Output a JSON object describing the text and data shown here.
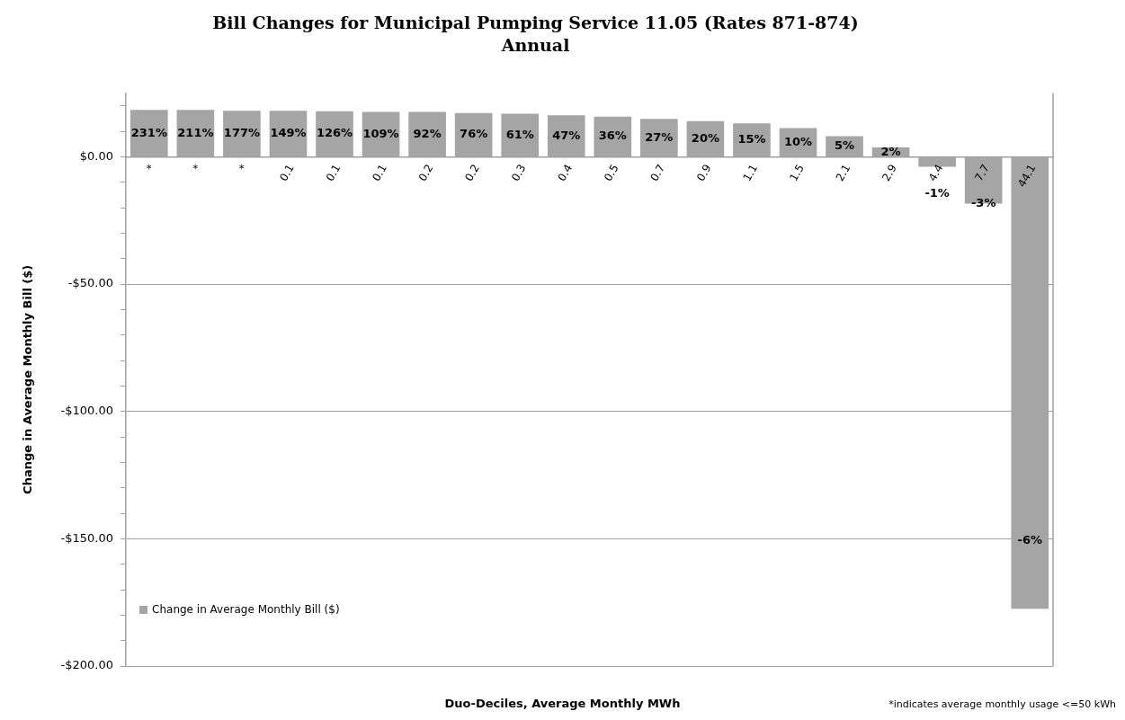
{
  "chart_data": {
    "type": "bar",
    "title": "Bill Changes for Municipal Pumping Service 11.05 (Rates 871-874)",
    "subtitle": "Annual",
    "xlabel": "Duo-Deciles, Average Monthly MWh",
    "ylabel": "Change in Average Monthly Bill ($)",
    "categories": [
      "*",
      "*",
      "*",
      "0.1",
      "0.1",
      "0.1",
      "0.2",
      "0.2",
      "0.3",
      "0.4",
      "0.5",
      "0.7",
      "0.9",
      "1.1",
      "1.5",
      "2.1",
      "2.9",
      "4.4",
      "7.7",
      "44.1"
    ],
    "series": [
      {
        "name": "Change in Average Monthly Bill ($)",
        "color": "#a5a5a5",
        "values": [
          18.4,
          18.4,
          18.1,
          18.1,
          17.9,
          17.6,
          17.6,
          17.2,
          16.9,
          16.3,
          15.8,
          14.9,
          14.0,
          13.1,
          11.3,
          8.1,
          3.7,
          -3.9,
          -18.4,
          -177.5
        ]
      }
    ],
    "ylim": [
      -200,
      25
    ],
    "yticks": [
      {
        "value": -200,
        "label": "-$200.00"
      },
      {
        "value": -190,
        "label": null
      },
      {
        "value": -180,
        "label": null
      },
      {
        "value": -170,
        "label": null
      },
      {
        "value": -160,
        "label": null
      },
      {
        "value": -150,
        "label": "-$150.00"
      },
      {
        "value": -140,
        "label": null
      },
      {
        "value": -130,
        "label": null
      },
      {
        "value": -120,
        "label": null
      },
      {
        "value": -110,
        "label": null
      },
      {
        "value": -100,
        "label": "-$100.00"
      },
      {
        "value": -90,
        "label": null
      },
      {
        "value": -80,
        "label": null
      },
      {
        "value": -70,
        "label": null
      },
      {
        "value": -60,
        "label": null
      },
      {
        "value": -50,
        "label": "-$50.00"
      },
      {
        "value": -40,
        "label": null
      },
      {
        "value": -30,
        "label": null
      },
      {
        "value": -20,
        "label": null
      },
      {
        "value": -10,
        "label": null
      },
      {
        "value": 0,
        "label": "$0.00"
      },
      {
        "value": 10,
        "label": null
      },
      {
        "value": 20,
        "label": null
      }
    ],
    "grid": "y",
    "legend": "bottom left",
    "annotations": [
      {
        "text": "231%",
        "y": 18.4
      },
      {
        "text": "211%",
        "y": 18.4
      },
      {
        "text": "177%",
        "y": 18.1
      },
      {
        "text": "149%",
        "y": 18.1
      },
      {
        "text": "126%",
        "y": 17.9
      },
      {
        "text": "109%",
        "y": 17.6
      },
      {
        "text": "92%",
        "y": 17.6
      },
      {
        "text": "76%",
        "y": 17.2
      },
      {
        "text": "61%",
        "y": 16.9
      },
      {
        "text": "47%",
        "y": 16.3
      },
      {
        "text": "36%",
        "y": 15.8
      },
      {
        "text": "27%",
        "y": 14.9
      },
      {
        "text": "20%",
        "y": 14.0
      },
      {
        "text": "15%",
        "y": 13.1
      },
      {
        "text": "10%",
        "y": 11.3
      },
      {
        "text": "5%",
        "y": 8.1
      },
      {
        "text": "2%",
        "y": 3.7
      },
      {
        "text": "-1%",
        "y": -3.9
      },
      {
        "text": "-3%",
        "y": -18.4
      },
      "-6%",
      "*indicates average monthly usage <=50 kWh"
    ]
  }
}
